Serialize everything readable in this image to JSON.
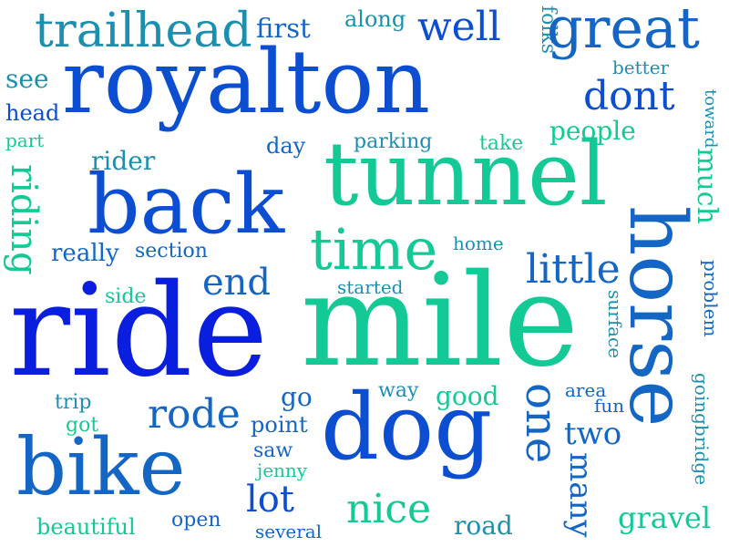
{
  "palette": {
    "blue": "#0a1ee0",
    "royal": "#0b4ed2",
    "mid": "#1366c4",
    "teal": "#1b8fb0",
    "green": "#13c996",
    "mint": "#22dd88"
  },
  "words": [
    {
      "text": "trailhead",
      "color": "teal"
    },
    {
      "text": "first",
      "color": "mid"
    },
    {
      "text": "along",
      "color": "teal"
    },
    {
      "text": "well",
      "color": "royal"
    },
    {
      "text": "folks",
      "color": "teal"
    },
    {
      "text": "great",
      "color": "mid"
    },
    {
      "text": "royalton",
      "color": "royal"
    },
    {
      "text": "see",
      "color": "teal"
    },
    {
      "text": "better",
      "color": "teal"
    },
    {
      "text": "head",
      "color": "royal"
    },
    {
      "text": "dont",
      "color": "royal"
    },
    {
      "text": "part",
      "color": "green"
    },
    {
      "text": "toward",
      "color": "teal"
    },
    {
      "text": "day",
      "color": "mid"
    },
    {
      "text": "parking",
      "color": "teal"
    },
    {
      "text": "take",
      "color": "green"
    },
    {
      "text": "people",
      "color": "green"
    },
    {
      "text": "rider",
      "color": "teal"
    },
    {
      "text": "tunnel",
      "color": "green"
    },
    {
      "text": "riding",
      "color": "green"
    },
    {
      "text": "back",
      "color": "royal"
    },
    {
      "text": "much",
      "color": "green"
    },
    {
      "text": "time",
      "color": "green"
    },
    {
      "text": "really",
      "color": "mid"
    },
    {
      "text": "section",
      "color": "mid"
    },
    {
      "text": "home",
      "color": "teal"
    },
    {
      "text": "horse",
      "color": "mid"
    },
    {
      "text": "little",
      "color": "mid"
    },
    {
      "text": "end",
      "color": "mid"
    },
    {
      "text": "side",
      "color": "green"
    },
    {
      "text": "started",
      "color": "teal"
    },
    {
      "text": "problem",
      "color": "mid"
    },
    {
      "text": "ride",
      "color": "blue"
    },
    {
      "text": "mile",
      "color": "green"
    },
    {
      "text": "surface",
      "color": "teal"
    },
    {
      "text": "trip",
      "color": "teal"
    },
    {
      "text": "go",
      "color": "mid"
    },
    {
      "text": "way",
      "color": "teal"
    },
    {
      "text": "good",
      "color": "green"
    },
    {
      "text": "one",
      "color": "mid"
    },
    {
      "text": "area",
      "color": "mid"
    },
    {
      "text": "fun",
      "color": "mid"
    },
    {
      "text": "goingbridge",
      "color": "teal"
    },
    {
      "text": "got",
      "color": "green"
    },
    {
      "text": "rode",
      "color": "mid"
    },
    {
      "text": "point",
      "color": "mid"
    },
    {
      "text": "dog",
      "color": "royal"
    },
    {
      "text": "two",
      "color": "mid"
    },
    {
      "text": "bike",
      "color": "mid"
    },
    {
      "text": "saw",
      "color": "mid"
    },
    {
      "text": "jenny",
      "color": "green"
    },
    {
      "text": "many",
      "color": "mid"
    },
    {
      "text": "lot",
      "color": "royal"
    },
    {
      "text": "nice",
      "color": "green"
    },
    {
      "text": "gravel",
      "color": "green"
    },
    {
      "text": "beautiful",
      "color": "green"
    },
    {
      "text": "open",
      "color": "mid"
    },
    {
      "text": "several",
      "color": "mid"
    },
    {
      "text": "road",
      "color": "teal"
    }
  ]
}
